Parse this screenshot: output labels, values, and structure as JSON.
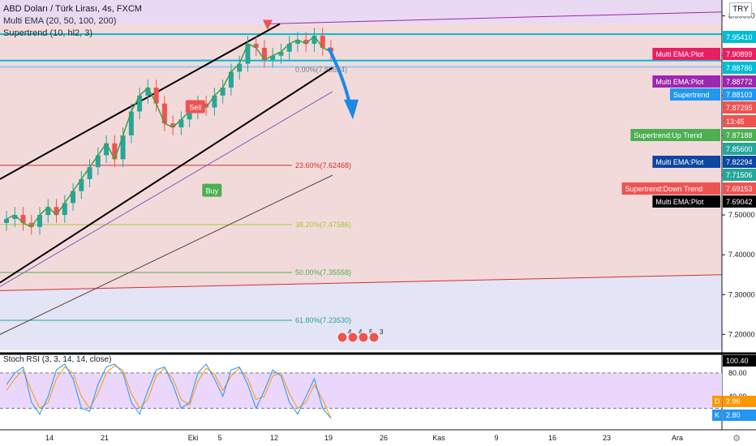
{
  "header": {
    "title": "ABD Doları / Türk Lirası, 4s, FXCM",
    "ind1": "Multi EMA (20, 50, 100, 200)",
    "ind2": "Supertrend (10, hl2, 3)"
  },
  "currency_button": "TRY",
  "chart_data": {
    "type": "line",
    "title": "ABD Doları / Türk Lirası, 4s, FXCM",
    "x_ticks": [
      "14",
      "21",
      "Eki",
      "5",
      "12",
      "19",
      "26",
      "Kas",
      "9",
      "16",
      "23",
      "Ara"
    ],
    "y_ticks": [
      "8.00000",
      "7.90000",
      "7.80000",
      "7.70000",
      "7.60000",
      "7.50000",
      "7.40000",
      "7.30000",
      "7.20000"
    ],
    "ylim": [
      7.16,
      8.04
    ],
    "price_series": {
      "name": "USD/TRY",
      "x": [
        0,
        1,
        2,
        3,
        4,
        5,
        6,
        7,
        8,
        9,
        10,
        11,
        12,
        13,
        14,
        15,
        16,
        17,
        18,
        19,
        20,
        21,
        22,
        23,
        24,
        25,
        26,
        27,
        28,
        29,
        30,
        31,
        32,
        33,
        34,
        35,
        36,
        37,
        38,
        39
      ],
      "close": [
        7.49,
        7.5,
        7.48,
        7.47,
        7.5,
        7.52,
        7.5,
        7.53,
        7.56,
        7.59,
        7.62,
        7.65,
        7.68,
        7.64,
        7.7,
        7.76,
        7.8,
        7.82,
        7.78,
        7.73,
        7.72,
        7.74,
        7.76,
        7.78,
        7.77,
        7.8,
        7.82,
        7.86,
        7.88,
        7.93,
        7.92,
        7.89,
        7.9,
        7.91,
        7.93,
        7.94,
        7.93,
        7.95,
        7.92,
        7.91
      ]
    },
    "fibonacci": [
      {
        "label": "23.60%(7.62468)",
        "value": 7.62468,
        "color": "#d32f2f"
      },
      {
        "label": "38.20%(7.47586)",
        "value": 7.47586,
        "color": "#a5c93a"
      },
      {
        "label": "50.00%(7.35558)",
        "value": 7.35558,
        "color": "#4caf50"
      },
      {
        "label": "61.80%(7.23530)",
        "value": 7.2353,
        "color": "#26a69a"
      },
      {
        "label": "0.00%(7.86524)",
        "value": 7.86524,
        "color": "#787b86"
      }
    ],
    "horizontal_lines": [
      {
        "value": 7.9541,
        "color": "#00bcd4"
      },
      {
        "value": 7.8879,
        "color": "#00bcd4"
      },
      {
        "value": 7.8719,
        "color": "#90caf9"
      }
    ],
    "price_labels": [
      {
        "text": "8.00000",
        "value": 8.0,
        "bg": "#ffffff",
        "fg": "#131722"
      },
      {
        "text": "7.95410",
        "value": 7.9541,
        "bg": "#00bcd4",
        "fg": "#ffffff"
      },
      {
        "text": "Multi EMA:Plot",
        "price": "7.90899",
        "value": 7.90899,
        "bg": "#e91e63",
        "fg": "#ffffff"
      },
      {
        "text": "7.88786",
        "value": 7.88786,
        "bg": "#00bcd4",
        "fg": "#ffffff"
      },
      {
        "text": "Multi EMA:Plot",
        "price": "7.88772",
        "value": 7.88772,
        "bg": "#9c27b0",
        "fg": "#ffffff"
      },
      {
        "text": "Supertrend",
        "price": "7.88103",
        "value": 7.88103,
        "bg": "#2196f3",
        "fg": "#ffffff"
      },
      {
        "text": "7.87295",
        "value": 7.87295,
        "bg": "#ef5350",
        "fg": "#ffffff"
      },
      {
        "text": "13:45",
        "value": 7.86,
        "bg": "#ef5350",
        "fg": "#ffffff"
      },
      {
        "text": "Supertrend:Up Trend",
        "price": "7.87188",
        "value": 7.87188,
        "bg": "#4caf50",
        "fg": "#ffffff"
      },
      {
        "text": "7.85600",
        "value": 7.856,
        "bg": "#26a69a",
        "fg": "#ffffff"
      },
      {
        "text": "Multi EMA:Plot",
        "price": "7.82294",
        "value": 7.82294,
        "bg": "#0d47a1",
        "fg": "#ffffff"
      },
      {
        "text": "7.71506",
        "value": 7.71506,
        "bg": "#26a69a",
        "fg": "#ffffff"
      },
      {
        "text": "Supertrend:Down Trend",
        "price": "7.69153",
        "value": 7.69153,
        "bg": "#ef5350",
        "fg": "#ffffff"
      },
      {
        "text": "Multi EMA:Plot",
        "price": "7.69042",
        "value": 7.69042,
        "bg": "#000000",
        "fg": "#ffffff"
      }
    ],
    "signals": [
      {
        "label": "Sell",
        "x": 11,
        "value": 7.77,
        "color": "#ef5350"
      },
      {
        "label": "Buy",
        "x": 13,
        "value": 7.56,
        "color": "#4caf50"
      }
    ],
    "events_badges": [
      "4",
      "4",
      "5",
      "3"
    ],
    "rsi": {
      "title": "Stoch RSI (3, 3, 14, 14, close)",
      "ylim": [
        0,
        110
      ],
      "ticks": [
        "100.40",
        "80.00",
        "40.00"
      ],
      "levels": [
        80,
        20
      ],
      "d_label": "D",
      "d_value": "2.96",
      "k_label": "K",
      "k_value": "2.80",
      "k": [
        60,
        80,
        90,
        30,
        10,
        40,
        85,
        95,
        70,
        20,
        15,
        60,
        90,
        95,
        80,
        30,
        10,
        50,
        85,
        90,
        60,
        20,
        30,
        80,
        95,
        70,
        40,
        85,
        90,
        60,
        20,
        50,
        85,
        75,
        30,
        10,
        40,
        70,
        20,
        3
      ],
      "d": [
        50,
        70,
        85,
        50,
        20,
        30,
        70,
        90,
        80,
        40,
        20,
        45,
        80,
        92,
        85,
        45,
        20,
        35,
        75,
        88,
        70,
        35,
        25,
        65,
        88,
        78,
        50,
        75,
        88,
        70,
        35,
        40,
        75,
        80,
        45,
        20,
        30,
        60,
        35,
        3
      ]
    },
    "colors": {
      "upper_zone": "#f3dada",
      "lower_zone": "#e3e4f5",
      "top_zone": "#ead9f3",
      "rsi_band": "#ead7fb",
      "candle_up": "#26a69a",
      "candle_down": "#ef5350"
    }
  }
}
